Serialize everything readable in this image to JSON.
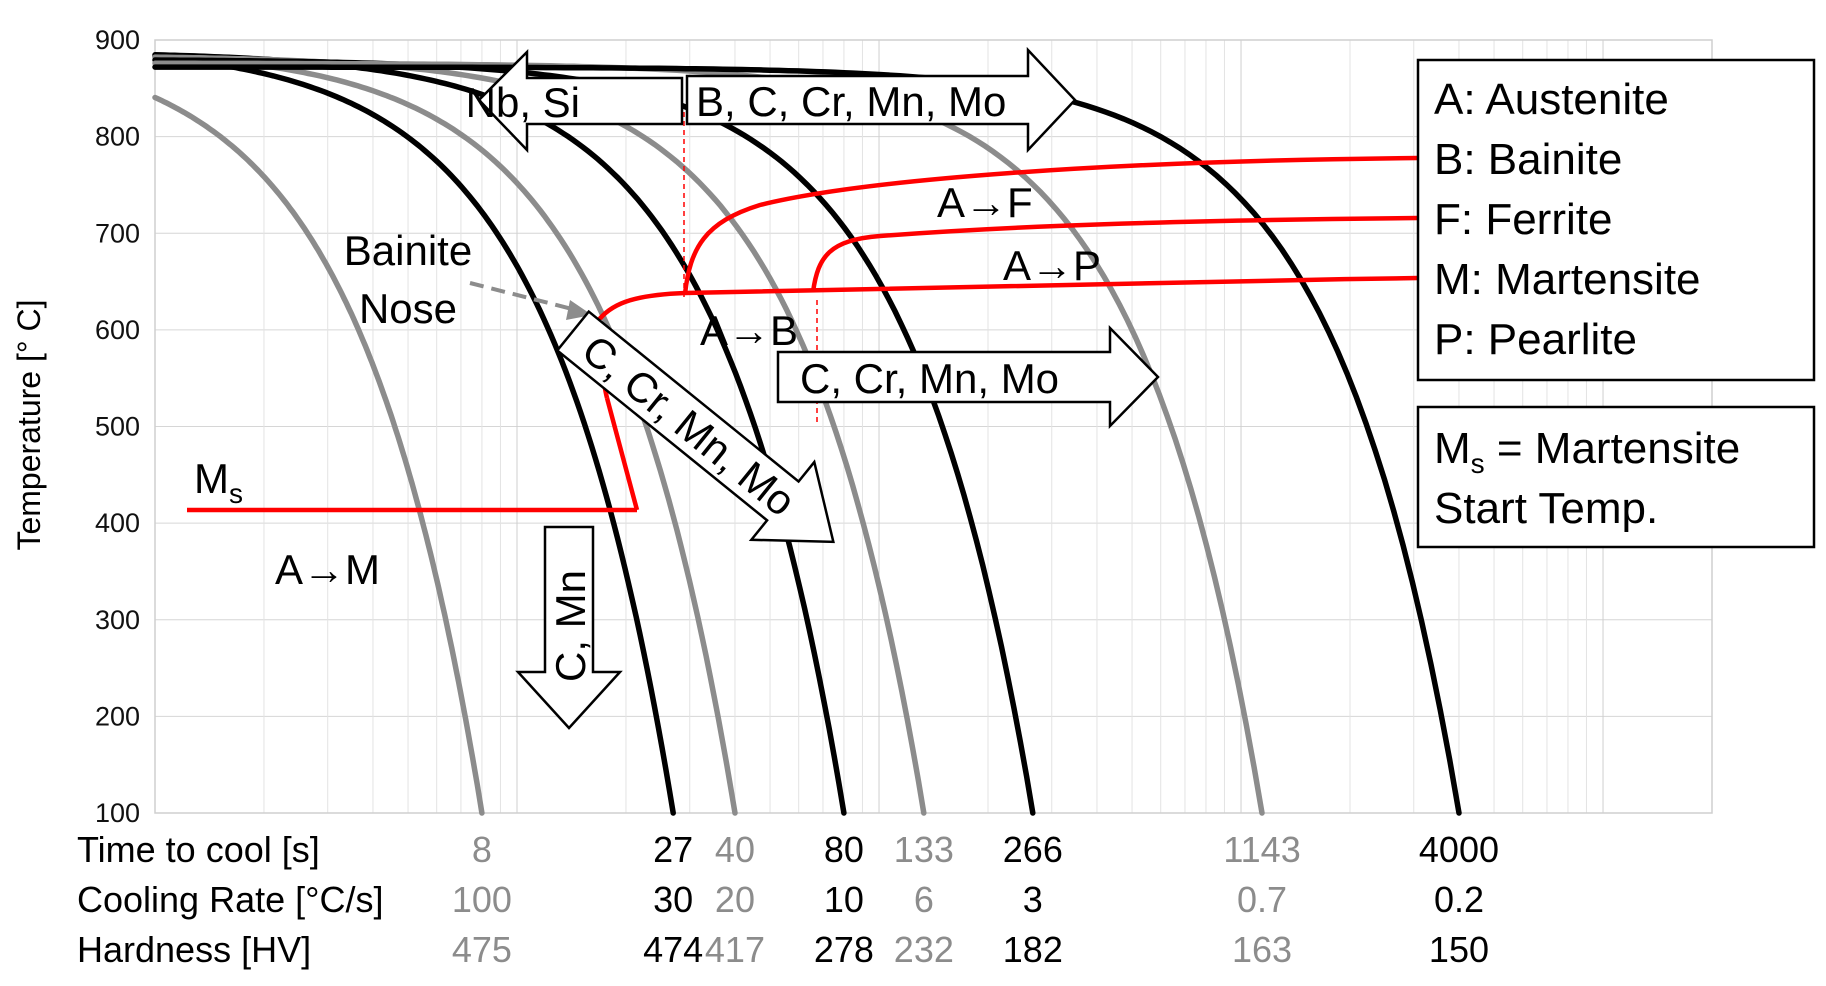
{
  "chart_data": {
    "type": "line",
    "title": "",
    "xlabel": "",
    "ylabel": "Temperature [° C]",
    "ylim": [
      100,
      900
    ],
    "yticks": [
      100,
      200,
      300,
      400,
      500,
      600,
      700,
      800,
      900
    ],
    "x_scale": "log",
    "xlim": [
      1,
      20000
    ],
    "grid": true,
    "cooling_curves": [
      {
        "time_to_cool": 8,
        "cooling_rate": "100",
        "hardness": "475",
        "color": "#8c8c8c"
      },
      {
        "time_to_cool": 27,
        "cooling_rate": "30",
        "hardness": "474",
        "color": "#000000"
      },
      {
        "time_to_cool": 40,
        "cooling_rate": "20",
        "hardness": "417",
        "color": "#8c8c8c"
      },
      {
        "time_to_cool": 80,
        "cooling_rate": "10",
        "hardness": "278",
        "color": "#000000"
      },
      {
        "time_to_cool": 133,
        "cooling_rate": "6",
        "hardness": "232",
        "color": "#8c8c8c"
      },
      {
        "time_to_cool": 266,
        "cooling_rate": "3",
        "hardness": "182",
        "color": "#000000"
      },
      {
        "time_to_cool": 1143,
        "cooling_rate": "0.7",
        "hardness": "163",
        "color": "#8c8c8c"
      },
      {
        "time_to_cool": 4000,
        "cooling_rate": "0.2",
        "hardness": "150",
        "color": "#000000"
      }
    ],
    "table_rows": {
      "time": "Time to cool [s]",
      "rate": "Cooling Rate [°C/s]",
      "hardness": "Hardness [HV]"
    },
    "region_labels": {
      "af": "A→F",
      "ap": "A→P",
      "ab": "A→B",
      "am": "A→M",
      "bainite_nose_1": "Bainite",
      "bainite_nose_2": "Nose"
    },
    "ms_label": "M",
    "ms_sub": "s",
    "alloy_arrows": {
      "left": "Nb, Si",
      "top_right": "B, C, Cr, Mn, Mo",
      "diagonal": "C, Cr, Mn, Mo",
      "middle_right": "C, Cr, Mn, Mo",
      "down": "C, Mn"
    },
    "legend": [
      "A: Austenite",
      "B: Bainite",
      "F: Ferrite",
      "M: Martensite",
      "P: Pearlite"
    ],
    "ms_box": {
      "line1_main": "M",
      "line1_sub": "s",
      "line1_rest": " = Martensite",
      "line2": "Start Temp."
    },
    "transformation_color": "#ff0000"
  }
}
